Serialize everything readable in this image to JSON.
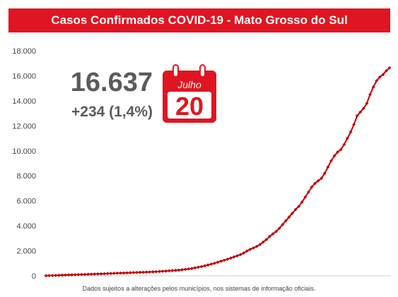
{
  "header": {
    "title": "Casos Confirmados COVID-19 - Mato Grosso do Sul"
  },
  "highlight": {
    "total": "16.637",
    "delta": "+234 (1,4%)",
    "calendar_month": "Julho",
    "calendar_day": "20"
  },
  "footnote": "Dados sujeitos a alterações pelos municípios, nos sistemas de informação oficiais.",
  "colors": {
    "accent": "#e01521",
    "text_gray": "#5b5b5b"
  },
  "chart_data": {
    "type": "line",
    "title": "Casos Confirmados COVID-19 - Mato Grosso do Sul",
    "xlabel": "",
    "ylabel": "",
    "ylim": [
      0,
      18000
    ],
    "y_ticks": [
      0,
      2000,
      4000,
      6000,
      8000,
      10000,
      12000,
      14000,
      16000,
      18000
    ],
    "y_tick_labels": [
      "0",
      "2.000",
      "4.000",
      "6.000",
      "8.000",
      "10.000",
      "12.000",
      "14.000",
      "16.000",
      "18.000"
    ],
    "grid": false,
    "legend": "none",
    "series": [
      {
        "marker": "diamond",
        "color": "#c00000",
        "values": [
          10,
          20,
          30,
          35,
          45,
          55,
          65,
          75,
          80,
          90,
          100,
          110,
          115,
          125,
          135,
          145,
          150,
          160,
          170,
          180,
          190,
          200,
          210,
          220,
          230,
          240,
          250,
          260,
          270,
          280,
          290,
          300,
          310,
          320,
          335,
          350,
          365,
          380,
          400,
          420,
          440,
          460,
          490,
          520,
          550,
          590,
          640,
          690,
          740,
          800,
          870,
          940,
          1010,
          1090,
          1170,
          1250,
          1330,
          1420,
          1510,
          1600,
          1700,
          1830,
          1980,
          2120,
          2230,
          2350,
          2500,
          2700,
          2900,
          3150,
          3350,
          3550,
          3800,
          4100,
          4400,
          4700,
          5000,
          5300,
          5550,
          5900,
          6300,
          6700,
          7100,
          7400,
          7600,
          7800,
          8200,
          8700,
          9200,
          9600,
          9900,
          10100,
          10500,
          11000,
          11500,
          12100,
          12800,
          13100,
          13400,
          13800,
          14500,
          15100,
          15600,
          15900,
          16100,
          16403,
          16637
        ]
      }
    ]
  }
}
